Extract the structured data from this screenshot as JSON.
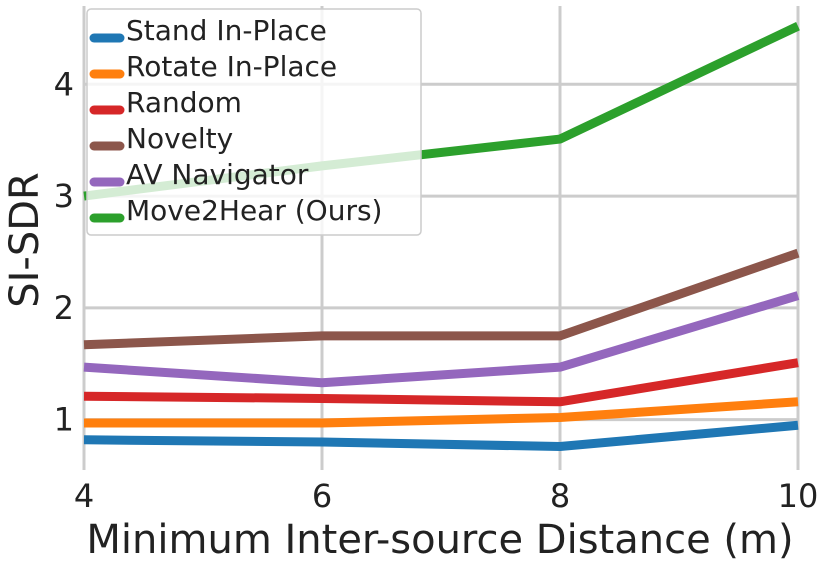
{
  "chart_data": {
    "type": "line",
    "xlabel": "Minimum Inter-source Distance (m)",
    "ylabel": "SI-SDR",
    "x": [
      4,
      6,
      8,
      10
    ],
    "xlim": [
      4,
      10
    ],
    "ylim": [
      0.55,
      4.7
    ],
    "xticks": [
      "4",
      "6",
      "8",
      "10"
    ],
    "yticks": [
      "1",
      "2",
      "3",
      "4"
    ],
    "grid": true,
    "legend_position": "top-left",
    "series": [
      {
        "name": "Stand In-Place",
        "color": "#1f77b4",
        "values": [
          0.82,
          0.8,
          0.76,
          0.95
        ]
      },
      {
        "name": "Rotate In-Place",
        "color": "#ff7f0e",
        "values": [
          0.97,
          0.97,
          1.02,
          1.16
        ]
      },
      {
        "name": "Random",
        "color": "#d62728",
        "values": [
          1.21,
          1.19,
          1.16,
          1.51
        ]
      },
      {
        "name": "Novelty",
        "color": "#8c564b",
        "values": [
          1.67,
          1.75,
          1.75,
          2.49
        ]
      },
      {
        "name": "AV Navigator",
        "color": "#9467bd",
        "values": [
          1.47,
          1.33,
          1.47,
          2.11
        ]
      },
      {
        "name": "Move2Hear (Ours)",
        "color": "#2ca02c",
        "values": [
          3.0,
          3.27,
          3.51,
          4.52
        ]
      }
    ]
  }
}
